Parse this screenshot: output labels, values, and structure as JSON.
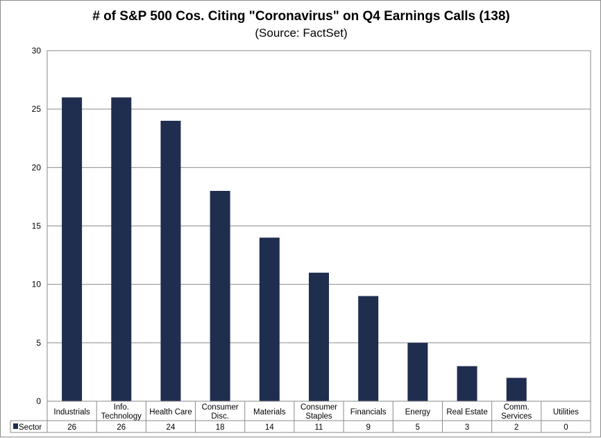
{
  "chart_data": {
    "type": "bar",
    "title": "# of S&P 500 Cos. Citing \"Coronavirus\" on Q4 Earnings Calls (138)",
    "subtitle": "(Source: FactSet)",
    "categories": [
      [
        "Industrials"
      ],
      [
        "Info.",
        "Technology"
      ],
      [
        "Health Care"
      ],
      [
        "Consumer",
        "Disc."
      ],
      [
        "Materials"
      ],
      [
        "Consumer",
        "Staples"
      ],
      [
        "Financials"
      ],
      [
        "Energy"
      ],
      [
        "Real Estate"
      ],
      [
        "Comm.",
        "Services"
      ],
      [
        "Utilities"
      ]
    ],
    "series": [
      {
        "name": "Sector",
        "values": [
          26,
          26,
          24,
          18,
          14,
          11,
          9,
          5,
          3,
          2,
          0
        ],
        "color": "#1f2d4f"
      }
    ],
    "yticks": [
      "0",
      "5",
      "10",
      "15",
      "20",
      "25",
      "30"
    ],
    "ylim": [
      0,
      30
    ],
    "xlabel": "",
    "ylabel": "",
    "grid": true,
    "legend": "data-table-left"
  }
}
